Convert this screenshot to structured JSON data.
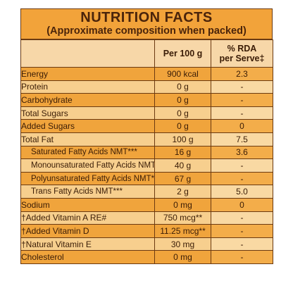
{
  "header": {
    "title": "NUTRITION FACTS",
    "subtitle": "(Approximate composition when packed)"
  },
  "columns": {
    "per100": "Per 100 g",
    "rda_line1": "% RDA",
    "rda_line2": "per Serve‡"
  },
  "rows": [
    {
      "name": "Energy",
      "value": "900 kcal",
      "rda": "2.3"
    },
    {
      "name": "Protein",
      "value": "0 g",
      "rda": "-"
    },
    {
      "name": "Carbohydrate",
      "value": "0 g",
      "rda": "-"
    },
    {
      "name": "Total Sugars",
      "value": "0 g",
      "rda": "-"
    },
    {
      "name": "Added Sugars",
      "value": "0 g",
      "rda": "0"
    },
    {
      "name": "Total Fat",
      "value": "100 g",
      "rda": "7.5"
    },
    {
      "name": "Saturated Fatty Acids NMT***",
      "value": "16 g",
      "rda": "3.6"
    },
    {
      "name": "Monounsaturated Fatty Acids NMT***",
      "value": "40 g",
      "rda": "-"
    },
    {
      "name": "Polyunsaturated Fatty Acids NMT***",
      "value": "67 g",
      "rda": "-"
    },
    {
      "name": "Trans Fatty Acids NMT***",
      "value": "2 g",
      "rda": "5.0"
    },
    {
      "name": "Sodium",
      "value": "0 mg",
      "rda": "0"
    },
    {
      "name": "†Added Vitamin A RE#",
      "value": "750 mcg**",
      "rda": "-"
    },
    {
      "name": "†Added Vitamin D",
      "value": "11.25 mcg**",
      "rda": "-"
    },
    {
      "name": "†Natural Vitamin E",
      "value": "30 mg",
      "rda": "-"
    },
    {
      "name": "Cholesterol",
      "value": "0 mg",
      "rda": "-"
    }
  ]
}
